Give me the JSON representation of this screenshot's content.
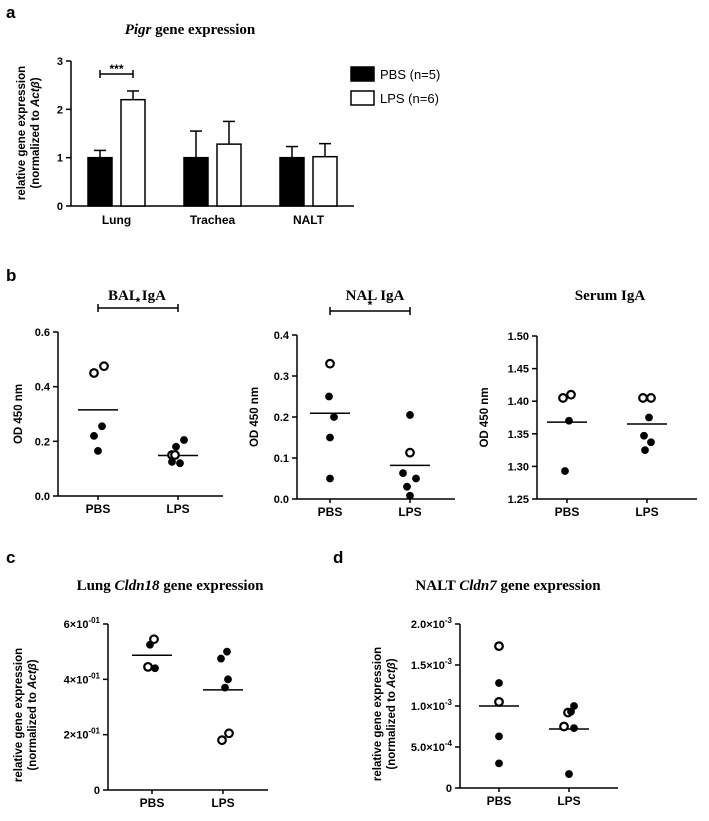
{
  "panels": {
    "a": "a",
    "b": "b",
    "c": "c",
    "d": "d"
  },
  "chart_data": [
    {
      "id": "a",
      "type": "bar",
      "title_italic": "Pigr",
      "title_rest": " gene expression",
      "ylabel_line1": "relative gene expression",
      "ylabel_line2": "(normalized to ",
      "ylabel_italic": "Actβ",
      "ylabel_end": ")",
      "categories": [
        "Lung",
        "Trachea",
        "NALT"
      ],
      "ylim": [
        0,
        3
      ],
      "yticks": [
        0,
        1,
        2,
        3
      ],
      "series": [
        {
          "name": "PBS (n=5)",
          "fill": "#000000",
          "values": [
            1.0,
            1.0,
            1.0
          ],
          "errors": [
            0.15,
            0.55,
            0.23
          ]
        },
        {
          "name": "LPS (n=6)",
          "fill": "#ffffff",
          "values": [
            2.2,
            1.28,
            1.02
          ],
          "errors": [
            0.18,
            0.47,
            0.27
          ]
        }
      ],
      "significance": [
        {
          "category": "Lung",
          "label": "***"
        }
      ],
      "legend": "right"
    },
    {
      "id": "b1",
      "type": "scatter",
      "title": "BAL IgA",
      "ylabel": "OD 450 nm",
      "categories": [
        "PBS",
        "LPS"
      ],
      "ylim": [
        0,
        0.6
      ],
      "yticks": [
        0.0,
        0.2,
        0.4,
        0.6
      ],
      "tick_decimals": 1,
      "groups": [
        {
          "name": "PBS",
          "mean": 0.315,
          "points": [
            {
              "y": 0.475,
              "open": true,
              "dx": 0.3
            },
            {
              "y": 0.45,
              "open": true,
              "dx": -0.2
            },
            {
              "y": 0.255,
              "open": false,
              "dx": 0.2
            },
            {
              "y": 0.22,
              "open": false,
              "dx": -0.2
            },
            {
              "y": 0.165,
              "open": false,
              "dx": 0.0
            }
          ]
        },
        {
          "name": "LPS",
          "mean": 0.148,
          "points": [
            {
              "y": 0.205,
              "open": false,
              "dx": 0.3
            },
            {
              "y": 0.18,
              "open": false,
              "dx": -0.1
            },
            {
              "y": 0.15,
              "open": true,
              "dx": -0.3
            },
            {
              "y": 0.15,
              "open": true,
              "dx": -0.15
            },
            {
              "y": 0.125,
              "open": false,
              "dx": -0.3
            },
            {
              "y": 0.12,
              "open": false,
              "dx": 0.1
            }
          ]
        }
      ],
      "significance": "*"
    },
    {
      "id": "b2",
      "type": "scatter",
      "title": "NAL IgA",
      "ylabel": "OD 450 nm",
      "categories": [
        "PBS",
        "LPS"
      ],
      "ylim": [
        0,
        0.4
      ],
      "yticks": [
        0.0,
        0.1,
        0.2,
        0.3,
        0.4
      ],
      "tick_decimals": 1,
      "groups": [
        {
          "name": "PBS",
          "mean": 0.209,
          "points": [
            {
              "y": 0.33,
              "open": true,
              "dx": 0.0
            },
            {
              "y": 0.25,
              "open": false,
              "dx": -0.05
            },
            {
              "y": 0.2,
              "open": false,
              "dx": 0.2
            },
            {
              "y": 0.15,
              "open": false,
              "dx": 0.0
            },
            {
              "y": 0.05,
              "open": false,
              "dx": 0.0
            }
          ]
        },
        {
          "name": "LPS",
          "mean": 0.082,
          "points": [
            {
              "y": 0.205,
              "open": false,
              "dx": 0.0
            },
            {
              "y": 0.113,
              "open": true,
              "dx": 0.0
            },
            {
              "y": 0.063,
              "open": false,
              "dx": -0.35
            },
            {
              "y": 0.05,
              "open": false,
              "dx": 0.3
            },
            {
              "y": 0.03,
              "open": false,
              "dx": -0.15
            },
            {
              "y": 0.008,
              "open": false,
              "dx": 0.0
            }
          ]
        }
      ],
      "significance": "*"
    },
    {
      "id": "b3",
      "type": "scatter",
      "title": "Serum IgA",
      "ylabel": "OD 450 nm",
      "categories": [
        "PBS",
        "LPS"
      ],
      "ylim": [
        1.25,
        1.5
      ],
      "yticks": [
        1.25,
        1.3,
        1.35,
        1.4,
        1.45,
        1.5
      ],
      "tick_decimals": 2,
      "groups": [
        {
          "name": "PBS",
          "mean": 1.368,
          "points": [
            {
              "y": 1.41,
              "open": true,
              "dx": 0.2
            },
            {
              "y": 1.405,
              "open": true,
              "dx": -0.2
            },
            {
              "y": 1.37,
              "open": false,
              "dx": 0.1
            },
            {
              "y": 1.293,
              "open": false,
              "dx": -0.1
            }
          ]
        },
        {
          "name": "LPS",
          "mean": 1.365,
          "points": [
            {
              "y": 1.405,
              "open": true,
              "dx": -0.2
            },
            {
              "y": 1.405,
              "open": true,
              "dx": 0.2
            },
            {
              "y": 1.375,
              "open": false,
              "dx": 0.1
            },
            {
              "y": 1.347,
              "open": false,
              "dx": -0.15
            },
            {
              "y": 1.337,
              "open": false,
              "dx": 0.2
            },
            {
              "y": 1.325,
              "open": false,
              "dx": -0.1
            }
          ]
        }
      ]
    },
    {
      "id": "c",
      "type": "scatter",
      "title_pre": "Lung ",
      "title_italic": "Cldn18",
      "title_rest": " gene expression",
      "ylabel_line1": "relative gene expression",
      "ylabel_line2": "(normalized to ",
      "ylabel_italic": "Actβ",
      "ylabel_end": ")",
      "categories": [
        "PBS",
        "LPS"
      ],
      "ylim": [
        0,
        0.6
      ],
      "ytick_labels": [
        {
          "value": 0,
          "mant": "0",
          "exp": ""
        },
        {
          "value": 0.2,
          "mant": "2×10",
          "exp": "-01"
        },
        {
          "value": 0.4,
          "mant": "4×10",
          "exp": "-01"
        },
        {
          "value": 0.6,
          "mant": "6×10",
          "exp": "-01"
        }
      ],
      "groups": [
        {
          "name": "PBS",
          "mean": 0.487,
          "points": [
            {
              "y": 0.545,
              "open": true,
              "dx": 0.1
            },
            {
              "y": 0.525,
              "open": false,
              "dx": -0.1
            },
            {
              "y": 0.445,
              "open": true,
              "dx": -0.2
            },
            {
              "y": 0.44,
              "open": false,
              "dx": 0.15
            }
          ]
        },
        {
          "name": "LPS",
          "mean": 0.362,
          "points": [
            {
              "y": 0.5,
              "open": false,
              "dx": 0.2
            },
            {
              "y": 0.475,
              "open": false,
              "dx": -0.1
            },
            {
              "y": 0.4,
              "open": false,
              "dx": 0.25
            },
            {
              "y": 0.37,
              "open": false,
              "dx": 0.1
            },
            {
              "y": 0.205,
              "open": true,
              "dx": 0.3
            },
            {
              "y": 0.18,
              "open": true,
              "dx": -0.05
            }
          ]
        }
      ]
    },
    {
      "id": "d",
      "type": "scatter",
      "title_pre": "NALT ",
      "title_italic": "Cldn7",
      "title_rest": " gene expression",
      "ylabel_line1": "relative gene expression",
      "ylabel_line2": "(normalized to ",
      "ylabel_italic": "Actβ",
      "ylabel_end": ")",
      "categories": [
        "PBS",
        "LPS"
      ],
      "ylim": [
        0,
        0.002
      ],
      "ytick_labels": [
        {
          "value": 0,
          "mant": "0",
          "exp": ""
        },
        {
          "value": 0.0005,
          "mant": "5.0×10",
          "exp": "-4"
        },
        {
          "value": 0.001,
          "mant": "1.0×10",
          "exp": "-3"
        },
        {
          "value": 0.0015,
          "mant": "1.5×10",
          "exp": "-3"
        },
        {
          "value": 0.002,
          "mant": "2.0×10",
          "exp": "-3"
        }
      ],
      "groups": [
        {
          "name": "PBS",
          "mean": 0.001,
          "points": [
            {
              "y": 0.00173,
              "open": true,
              "dx": 0.0
            },
            {
              "y": 0.00128,
              "open": false,
              "dx": 0.0
            },
            {
              "y": 0.00105,
              "open": true,
              "dx": 0.0
            },
            {
              "y": 0.00063,
              "open": false,
              "dx": 0.0
            },
            {
              "y": 0.0003,
              "open": false,
              "dx": 0.0
            }
          ]
        },
        {
          "name": "LPS",
          "mean": 0.00072,
          "points": [
            {
              "y": 0.001,
              "open": false,
              "dx": 0.25
            },
            {
              "y": 0.00092,
              "open": true,
              "dx": -0.05
            },
            {
              "y": 0.00093,
              "open": false,
              "dx": 0.1
            },
            {
              "y": 0.00075,
              "open": true,
              "dx": -0.25
            },
            {
              "y": 0.00073,
              "open": false,
              "dx": 0.25
            },
            {
              "y": 0.00017,
              "open": false,
              "dx": 0.0
            }
          ]
        }
      ]
    }
  ]
}
